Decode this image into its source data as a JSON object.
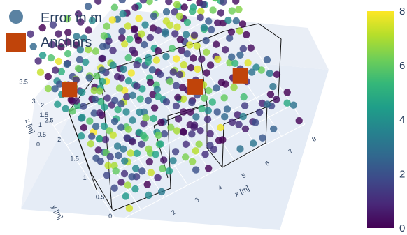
{
  "chart_data": {
    "type": "scatter3d",
    "title": "",
    "legend": {
      "placement": "top-left",
      "entries": [
        {
          "name": "Error in m",
          "marker": "circle",
          "color": "#5a82a2"
        },
        {
          "name": "Anchors",
          "marker": "square",
          "color": "#c0440a"
        }
      ]
    },
    "axes": {
      "x": {
        "label": "x [m]",
        "range": [
          0,
          8
        ],
        "ticks": [
          "2",
          "3",
          "4",
          "5",
          "6",
          "7",
          "8"
        ]
      },
      "y": {
        "label": "y [m]",
        "range": [
          0,
          3.5
        ],
        "ticks": [
          "0",
          "0.5",
          "1",
          "1.5",
          "2",
          "2.5",
          "3",
          "3.5"
        ]
      },
      "z": {
        "label": "z [m]",
        "range": [
          0,
          2
        ],
        "ticks": [
          "0",
          "0.5",
          "1",
          "1.5",
          "2"
        ]
      }
    },
    "colorbar": {
      "colorscale": "viridis",
      "range": [
        0,
        8
      ],
      "ticks": [
        "0",
        "2",
        "4",
        "6",
        "8"
      ],
      "colors": [
        "#440154",
        "#482878",
        "#3e4989",
        "#31688e",
        "#26828e",
        "#1f9e89",
        "#35b779",
        "#6ece58",
        "#b5de2b",
        "#fde725"
      ]
    },
    "anchors": [
      {
        "x": 6.3,
        "y": 0.2,
        "z": 2.0
      },
      {
        "x": 7.8,
        "y": 3.3,
        "z": 2.0
      },
      {
        "x": 5.0,
        "y": 1.2,
        "z": 0.9
      },
      {
        "x": 1.1,
        "y": 2.7,
        "z": 0.5
      }
    ],
    "grid": true
  }
}
